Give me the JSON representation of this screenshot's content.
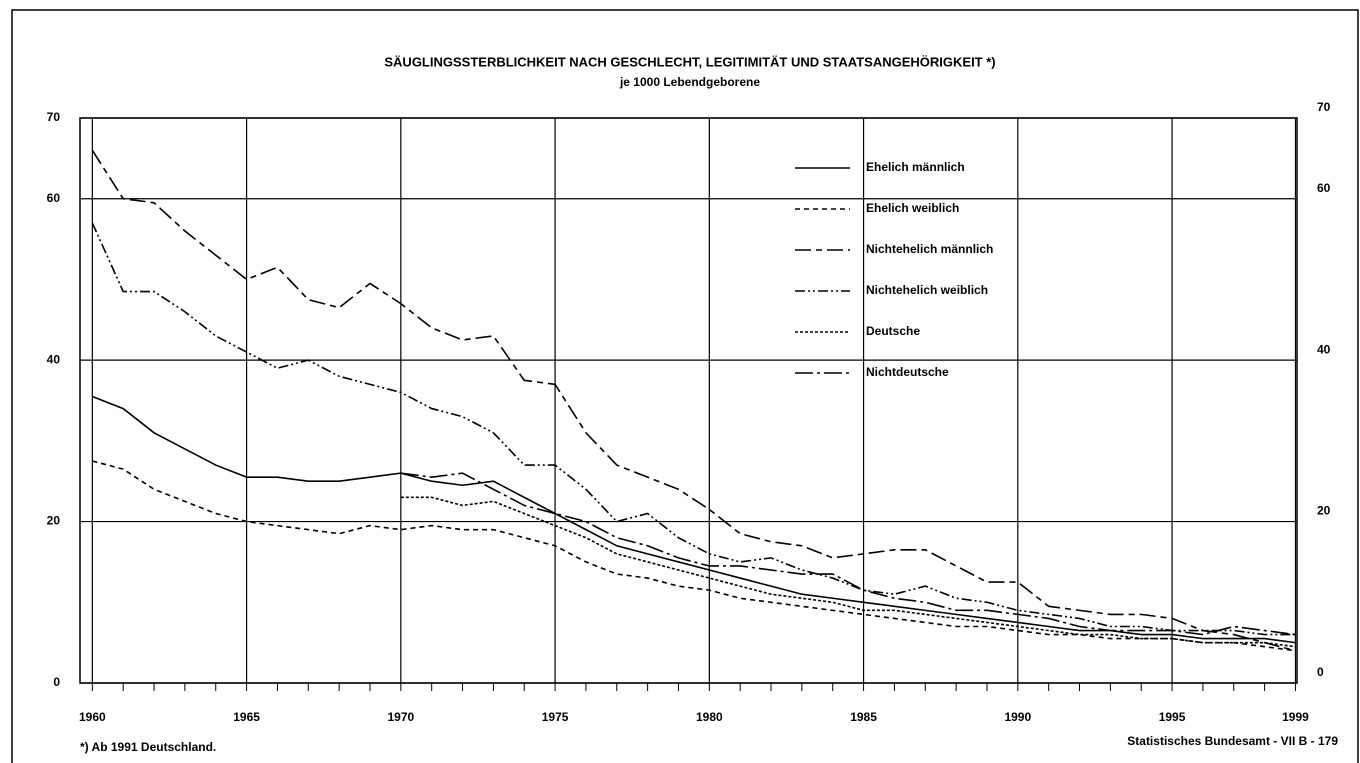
{
  "chart_data": {
    "type": "line",
    "title": "SÄUGLINGSSTERBLICHKEIT NACH GESCHLECHT, LEGITIMITÄT UND STAATSANGEHÖRIGKEIT *)",
    "subtitle": "je 1000 Lebendgeborene",
    "footnote": "*) Ab 1991 Deutschland.",
    "source": "Statistisches Bundesamt - VII B - 179",
    "x": [
      1960,
      1961,
      1962,
      1963,
      1964,
      1965,
      1966,
      1967,
      1968,
      1969,
      1970,
      1971,
      1972,
      1973,
      1974,
      1975,
      1976,
      1977,
      1978,
      1979,
      1980,
      1981,
      1982,
      1983,
      1984,
      1985,
      1986,
      1987,
      1988,
      1989,
      1990,
      1991,
      1992,
      1993,
      1994,
      1995,
      1996,
      1997,
      1998,
      1999
    ],
    "xlim": [
      1959.6,
      1999.05
    ],
    "xticks": [
      1960,
      1965,
      1970,
      1975,
      1980,
      1985,
      1990,
      1995,
      1999
    ],
    "ylim": [
      0,
      70
    ],
    "yticks": [
      0,
      20,
      40,
      60,
      70
    ],
    "grid": true,
    "series": [
      {
        "name": "Ehelich männlich",
        "color": "#000000",
        "dash": "none",
        "values": [
          35.5,
          34,
          31,
          29,
          27,
          25.5,
          25.5,
          25,
          25,
          25.5,
          26,
          25,
          24.5,
          25,
          23,
          21,
          19,
          17,
          16,
          15,
          14,
          13,
          12,
          11,
          10.5,
          10,
          9.5,
          9,
          8.5,
          8,
          7.5,
          7,
          6.5,
          6.5,
          6,
          6,
          5.5,
          5.5,
          5.5,
          5
        ]
      },
      {
        "name": "Ehelich weiblich",
        "color": "#000000",
        "dash": "5 4",
        "values": [
          27.5,
          26.5,
          24,
          22.5,
          21,
          20,
          19.5,
          19,
          18.5,
          19.5,
          19,
          19.5,
          19,
          19,
          18,
          17,
          15,
          13.5,
          13,
          12,
          11.5,
          10.5,
          10,
          9.5,
          9,
          8.5,
          8,
          7.5,
          7,
          7,
          6.5,
          6,
          6,
          5.5,
          5.5,
          5.5,
          5,
          5,
          4.5,
          4
        ]
      },
      {
        "name": "Nichtehelich männlich",
        "color": "#000000",
        "dash": "16 5 6 5",
        "values": [
          66,
          60,
          59.5,
          56,
          53,
          50,
          51.5,
          47.5,
          46.5,
          49.5,
          47,
          44,
          42.5,
          43,
          37.5,
          37,
          31,
          27,
          25.5,
          24,
          21.5,
          18.5,
          17.5,
          17,
          15.5,
          16,
          16.5,
          16.5,
          14.5,
          12.5,
          12.5,
          9.5,
          9,
          8.5,
          8.5,
          8,
          6.5,
          6,
          5,
          4
        ]
      },
      {
        "name": "Nichtehelich weiblich",
        "color": "#000000",
        "dash": "10 3 2 3 2 3",
        "values": [
          57,
          48.5,
          48.5,
          46,
          43,
          41,
          39,
          40,
          38,
          37,
          36,
          34,
          33,
          31,
          27,
          27,
          24,
          20,
          21,
          18,
          16,
          15,
          15.5,
          14,
          13,
          11.5,
          11,
          12,
          10.5,
          10,
          9,
          8.5,
          8,
          7,
          7,
          6.5,
          6.5,
          6.5,
          6,
          6
        ]
      },
      {
        "name": "Deutsche",
        "color": "#000000",
        "dash": "3 2",
        "values": [
          null,
          null,
          null,
          null,
          null,
          null,
          null,
          null,
          null,
          null,
          23,
          23,
          22,
          22.5,
          21,
          19.5,
          18,
          16,
          15,
          14,
          13,
          12,
          11,
          10.5,
          10,
          9,
          9,
          8.5,
          8,
          7.5,
          7,
          6.5,
          6,
          6,
          5.5,
          5.5,
          5,
          5,
          5,
          4.5
        ]
      },
      {
        "name": "Nichtdeutsche",
        "color": "#000000",
        "dash": "18 4 3 4",
        "values": [
          null,
          null,
          null,
          null,
          null,
          null,
          null,
          null,
          null,
          null,
          26,
          25.5,
          26,
          24,
          22,
          21,
          20,
          18,
          17,
          15.5,
          14.5,
          14.5,
          14,
          13.5,
          13.5,
          11.5,
          10.5,
          10,
          9,
          9,
          8.5,
          8,
          7,
          6.5,
          6.5,
          6.5,
          6,
          7,
          6.5,
          6
        ]
      }
    ]
  }
}
